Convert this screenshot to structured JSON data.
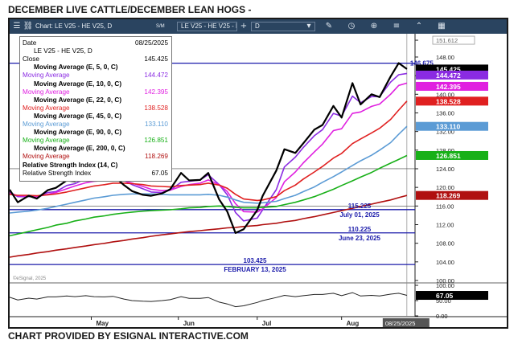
{
  "page_title": "DECEMBER LIVE CATTLE/DECEMBER LEAN HOGS   -",
  "credit": "CHART PROVIDED BY ESIGNAL INTERACTIVE.COM",
  "toolbar": {
    "chart_label": "Chart: LE V25 - HE V25, D",
    "sm_label": "S/M",
    "symbol_field": "LE V25 - HE V25 - Hi",
    "interval_field": "D",
    "icons": [
      "menu-icon",
      "link-icon",
      "add-icon",
      "chevron-down-icon",
      "pencil-icon",
      "clock-icon",
      "globe-icon",
      "layers-icon",
      "chevron-up-icon",
      "grid-icon"
    ]
  },
  "legend": {
    "rows": [
      {
        "label": "Date",
        "value": "08/25/2025",
        "color": "#000000",
        "bold": false,
        "indent": false
      },
      {
        "label": "LE V25 - HE V25, D",
        "value": "",
        "color": "#000000",
        "bold": false,
        "indent": true
      },
      {
        "label": "Close",
        "value": "145.425",
        "color": "#000000",
        "bold": false,
        "indent": false
      },
      {
        "label": "Moving Average (E, 5, 0, C)",
        "value": "",
        "color": "#000000",
        "bold": true,
        "indent": true
      },
      {
        "label": "Moving Average",
        "value": "144.472",
        "color": "#8a2be2",
        "bold": false,
        "indent": false
      },
      {
        "label": "Moving Average (E, 10, 0, C)",
        "value": "",
        "color": "#000000",
        "bold": true,
        "indent": true
      },
      {
        "label": "Moving Average",
        "value": "142.395",
        "color": "#e020e0",
        "bold": false,
        "indent": false
      },
      {
        "label": "Moving Average (E, 22, 0, C)",
        "value": "",
        "color": "#000000",
        "bold": true,
        "indent": true
      },
      {
        "label": "Moving Average",
        "value": "138.528",
        "color": "#e02020",
        "bold": false,
        "indent": false
      },
      {
        "label": "Moving Average (E, 45, 0, C)",
        "value": "",
        "color": "#000000",
        "bold": true,
        "indent": true
      },
      {
        "label": "Moving Average",
        "value": "133.110",
        "color": "#5b9bd5",
        "bold": false,
        "indent": false
      },
      {
        "label": "Moving Average (E, 90, 0, C)",
        "value": "",
        "color": "#000000",
        "bold": true,
        "indent": true
      },
      {
        "label": "Moving Average",
        "value": "126.851",
        "color": "#18b018",
        "bold": false,
        "indent": false
      },
      {
        "label": "Moving Average (E, 200, 0, C)",
        "value": "",
        "color": "#000000",
        "bold": true,
        "indent": true
      },
      {
        "label": "Moving Average",
        "value": "118.269",
        "color": "#b01010",
        "bold": false,
        "indent": false
      },
      {
        "label": "Relative Strength Index (14, C)",
        "value": "",
        "color": "#000000",
        "bold": true,
        "indent": false
      },
      {
        "label": "Relative Strength Index",
        "value": "67.05",
        "color": "#000000",
        "bold": false,
        "indent": false
      }
    ]
  },
  "chart_data": {
    "type": "line",
    "title": "DECEMBER LIVE CATTLE/DECEMBER LEAN HOGS   -",
    "xlabel": "",
    "ylabel": "",
    "x_tick_labels": [
      "May",
      "Jun",
      "Jul",
      "Aug"
    ],
    "x_tick_dates": [
      "2025-05-01",
      "2025-06-02",
      "2025-07-01",
      "2025-08-01"
    ],
    "x_end_label": "08/25/2025",
    "x_range": [
      "2025-04-01",
      "2025-08-28"
    ],
    "ylim": [
      100,
      153
    ],
    "y_ticks": [
      100,
      104,
      108,
      112,
      116,
      120,
      124,
      128,
      132,
      136,
      140,
      144,
      148,
      151.612
    ],
    "y_tick_labels": [
      "100.00",
      "104.00",
      "108.00",
      "112.00",
      "116.00",
      "120.00",
      "124.00",
      "128.00",
      "132.00",
      "136.00",
      "140.00",
      "144.00",
      "148.00",
      "151.612"
    ],
    "grid": false,
    "price": {
      "name": "Close",
      "x": [
        "2025-04-01",
        "2025-04-04",
        "2025-04-08",
        "2025-04-11",
        "2025-04-15",
        "2025-04-18",
        "2025-04-22",
        "2025-04-25",
        "2025-04-29",
        "2025-05-02",
        "2025-05-06",
        "2025-05-09",
        "2025-05-13",
        "2025-05-16",
        "2025-05-20",
        "2025-05-23",
        "2025-05-27",
        "2025-05-30",
        "2025-06-03",
        "2025-06-06",
        "2025-06-10",
        "2025-06-13",
        "2025-06-17",
        "2025-06-20",
        "2025-06-23",
        "2025-06-26",
        "2025-07-01",
        "2025-07-03",
        "2025-07-08",
        "2025-07-11",
        "2025-07-15",
        "2025-07-18",
        "2025-07-22",
        "2025-07-25",
        "2025-07-29",
        "2025-08-01",
        "2025-08-05",
        "2025-08-08",
        "2025-08-12",
        "2025-08-15",
        "2025-08-19",
        "2025-08-22",
        "2025-08-25"
      ],
      "y": [
        119.5,
        116.8,
        118.2,
        117.6,
        119.4,
        119.9,
        121.5,
        121.3,
        122.6,
        122.1,
        121.9,
        122.6,
        120.5,
        119.2,
        118.4,
        118.2,
        118.7,
        119.6,
        123.1,
        121.5,
        121.6,
        123.1,
        117.4,
        114.8,
        110.2,
        111.0,
        115.1,
        118.2,
        123.6,
        128.2,
        127.4,
        129.5,
        132.4,
        133.4,
        137.5,
        135.0,
        142.4,
        137.8,
        140.0,
        139.4,
        143.8,
        146.7,
        145.425
      ]
    },
    "series": [
      {
        "name": "Moving Average",
        "color": "#8a2be2",
        "y": [
          119.0,
          118.0,
          118.0,
          118.0,
          118.9,
          119.1,
          120.4,
          120.8,
          121.9,
          121.8,
          121.9,
          122.4,
          121.5,
          120.6,
          119.7,
          119.0,
          118.9,
          119.4,
          121.1,
          121.3,
          121.6,
          122.7,
          120.6,
          118.4,
          114.6,
          112.8,
          113.4,
          115.2,
          119.5,
          124.4,
          126.5,
          128.6,
          131.1,
          132.4,
          135.9,
          135.3,
          139.6,
          138.2,
          139.5,
          139.5,
          142.6,
          144.2,
          144.472
        ]
      },
      {
        "name": "Moving Average",
        "color": "#e020e0",
        "y": [
          118.8,
          118.2,
          118.1,
          118.0,
          118.5,
          118.9,
          119.7,
          120.3,
          121.0,
          121.3,
          121.5,
          121.8,
          121.4,
          120.9,
          120.2,
          119.6,
          119.3,
          119.4,
          120.2,
          120.6,
          120.9,
          121.6,
          120.6,
          119.1,
          116.5,
          114.8,
          114.7,
          115.4,
          117.8,
          121.2,
          123.3,
          125.3,
          127.6,
          129.3,
          132.2,
          132.6,
          135.9,
          136.2,
          137.4,
          137.9,
          140.0,
          141.9,
          142.395
        ]
      },
      {
        "name": "Moving Average",
        "color": "#e02020",
        "y": [
          118.5,
          118.3,
          118.3,
          118.2,
          118.4,
          118.6,
          119.0,
          119.4,
          119.9,
          120.3,
          120.6,
          120.9,
          120.9,
          120.8,
          120.6,
          120.3,
          120.2,
          120.1,
          120.4,
          120.5,
          120.6,
          120.9,
          120.5,
          119.8,
          118.5,
          117.5,
          117.2,
          117.3,
          118.0,
          119.3,
          120.5,
          121.8,
          123.3,
          124.5,
          126.3,
          127.3,
          129.4,
          130.4,
          131.7,
          132.7,
          134.6,
          136.6,
          138.528
        ]
      },
      {
        "name": "Moving Average",
        "color": "#5b9bd5",
        "y": [
          114.5,
          114.7,
          114.9,
          115.1,
          115.5,
          115.9,
          116.4,
          116.8,
          117.3,
          117.7,
          118.0,
          118.3,
          118.5,
          118.6,
          118.6,
          118.6,
          118.5,
          118.4,
          118.4,
          118.4,
          118.4,
          118.5,
          118.3,
          117.9,
          117.3,
          116.8,
          116.6,
          116.7,
          117.0,
          117.6,
          118.3,
          119.1,
          120.1,
          121.1,
          122.3,
          123.3,
          124.7,
          125.7,
          126.9,
          128.0,
          129.6,
          131.4,
          133.11
        ]
      },
      {
        "name": "Moving Average",
        "color": "#18b018",
        "y": [
          109.6,
          110.0,
          110.5,
          110.9,
          111.4,
          111.9,
          112.3,
          112.8,
          113.2,
          113.6,
          113.9,
          114.2,
          114.5,
          114.7,
          114.9,
          115.0,
          115.1,
          115.2,
          115.4,
          115.6,
          115.7,
          115.9,
          116.0,
          115.9,
          115.7,
          115.6,
          115.6,
          115.7,
          115.9,
          116.3,
          116.8,
          117.3,
          118.0,
          118.7,
          119.6,
          120.4,
          121.4,
          122.2,
          123.2,
          124.1,
          125.2,
          126.0,
          126.851
        ]
      },
      {
        "name": "Moving Average",
        "color": "#b01010",
        "y": [
          105.0,
          105.3,
          105.6,
          105.9,
          106.2,
          106.5,
          106.8,
          107.1,
          107.4,
          107.7,
          108.0,
          108.3,
          108.6,
          108.9,
          109.2,
          109.5,
          109.8,
          110.0,
          110.3,
          110.5,
          110.7,
          110.9,
          111.1,
          111.3,
          111.4,
          111.6,
          111.8,
          112.0,
          112.3,
          112.6,
          112.9,
          113.3,
          113.7,
          114.1,
          114.6,
          115.0,
          115.5,
          115.9,
          116.4,
          116.8,
          117.3,
          117.8,
          118.269
        ]
      }
    ],
    "horizontal_lines": [
      {
        "value": 146.675,
        "label": "146.675",
        "color": "#1a1aaa"
      },
      {
        "value": 115.225,
        "label": "115.225",
        "sublabel": "July 01, 2025",
        "color": "#1a1aaa"
      },
      {
        "value": 110.225,
        "label": "110.225",
        "sublabel": "June 23, 2025",
        "color": "#1a1aaa"
      },
      {
        "value": 103.425,
        "label": "103.425",
        "sublabel": "FEBRUARY 13, 2025",
        "color": "#1a1aaa"
      }
    ],
    "price_tags": [
      {
        "value": 151.612,
        "label": "151.612",
        "bg": "#ffffff",
        "fg": "#555555"
      },
      {
        "value": 145.425,
        "label": "145.425",
        "bg": "#000000",
        "fg": "#ffffff"
      },
      {
        "value": 144.472,
        "label": "144.472",
        "bg": "#8a2be2",
        "fg": "#ffffff"
      },
      {
        "value": 142.395,
        "label": "142.395",
        "bg": "#e020e0",
        "fg": "#ffffff"
      },
      {
        "value": 138.528,
        "label": "138.528",
        "bg": "#e02020",
        "fg": "#ffffff"
      },
      {
        "value": 133.11,
        "label": "133.110",
        "bg": "#5b9bd5",
        "fg": "#ffffff"
      },
      {
        "value": 126.851,
        "label": "126.851",
        "bg": "#18b018",
        "fg": "#ffffff"
      },
      {
        "value": 118.269,
        "label": "118.269",
        "bg": "#b01010",
        "fg": "#ffffff"
      }
    ],
    "rsi": {
      "ylim": [
        0,
        100
      ],
      "y_ticks": [
        0,
        50,
        100
      ],
      "y_tick_labels": [
        "0.00",
        "50.00",
        "100.00"
      ],
      "last": 67.05,
      "last_label": "67.05",
      "y": [
        61,
        52,
        58,
        55,
        62,
        62,
        65,
        63,
        66,
        63,
        62,
        64,
        55,
        50,
        48,
        47,
        50,
        53,
        63,
        57,
        57,
        60,
        45,
        39,
        30,
        33,
        44,
        50,
        60,
        67,
        63,
        66,
        70,
        70,
        74,
        66,
        76,
        65,
        67,
        65,
        71,
        74,
        67.05
      ]
    },
    "watermark": "©eSignal, 2025"
  }
}
